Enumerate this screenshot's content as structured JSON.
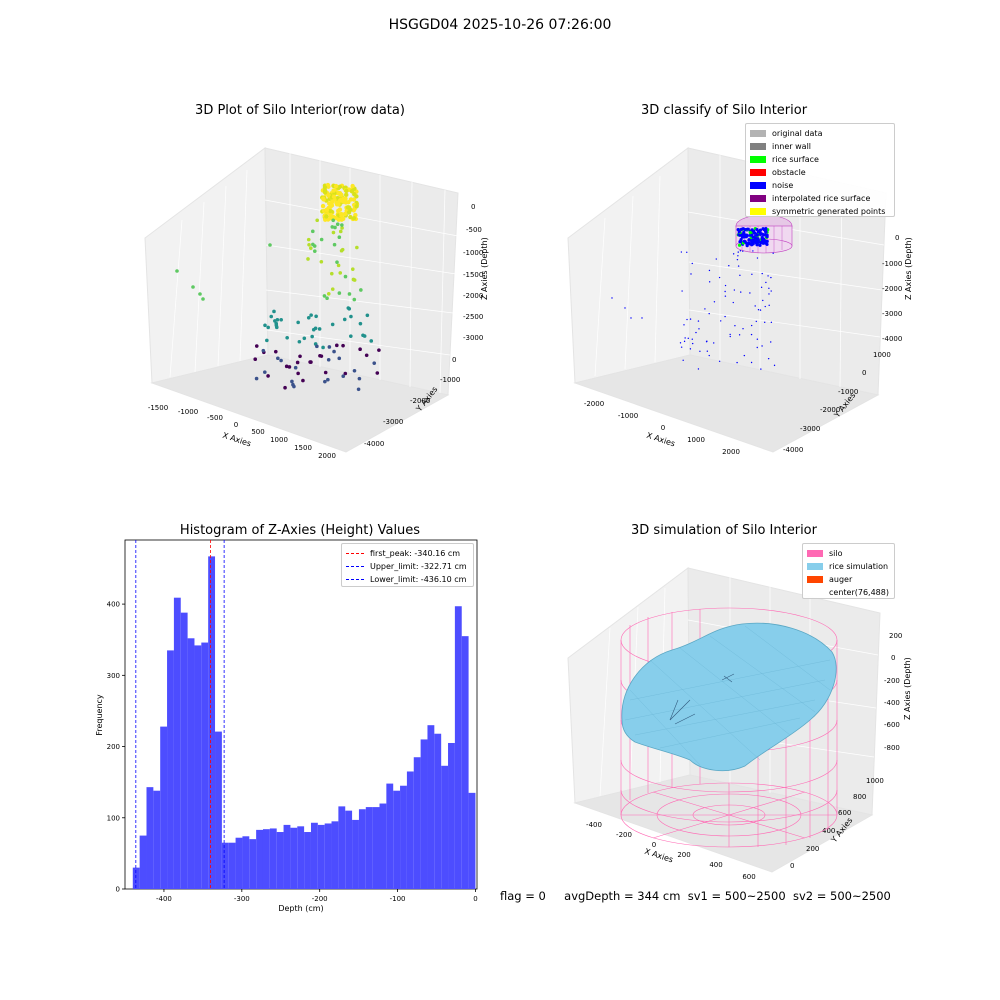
{
  "suptitle": "HSGGD04 2025-10-26 07:26:00",
  "footer": {
    "flag": "flag = 0",
    "avg": "avgDepth = 344 cm",
    "sv1": "sv1 = 500~2500",
    "sv2": "sv2 = 500~2500"
  },
  "chart_data": [
    {
      "type": "scatter",
      "title": "3D Plot of Silo Interior(row data)",
      "xlabel": "X Axies",
      "ylabel": "Y Axies",
      "zlabel": "Z Axies (Depth)",
      "xticks": [
        "-1500",
        "-1000",
        "-500",
        "0",
        "500",
        "1000",
        "1500",
        "2000"
      ],
      "yticks": [
        "0",
        "-1000",
        "-2000",
        "-3000",
        "-4000"
      ],
      "zticks": [
        "0",
        "-500",
        "-1000",
        "-1500",
        "-2000",
        "-2500",
        "-3000"
      ],
      "colormap": [
        "#440154",
        "#3b528b",
        "#21918c",
        "#5ec962",
        "#fde725"
      ]
    },
    {
      "type": "scatter",
      "title": "3D classify of Silo Interior",
      "xlabel": "X Axies",
      "ylabel": "Y Axies",
      "zlabel": "Z Axies (Depth)",
      "xticks": [
        "-2000",
        "-1000",
        "0",
        "1000",
        "2000"
      ],
      "yticks": [
        "1000",
        "0",
        "-1000",
        "-2000",
        "-3000",
        "-4000"
      ],
      "zticks": [
        "0",
        "-1000",
        "-2000",
        "-3000",
        "-4000"
      ],
      "legend": [
        {
          "label": "original data",
          "color": "#b3b3b3"
        },
        {
          "label": "inner wall",
          "color": "#808080"
        },
        {
          "label": "rice surface",
          "color": "#00ff00"
        },
        {
          "label": "obstacle",
          "color": "#ff0000"
        },
        {
          "label": "noise",
          "color": "#0000ff"
        },
        {
          "label": "interpolated rice surface",
          "color": "#800080"
        },
        {
          "label": "symmetric generated points",
          "color": "#ffff00"
        }
      ]
    },
    {
      "type": "bar",
      "title": "Histogram of Z-Axies (Height) Values",
      "xlabel": "Depth (cm)",
      "ylabel": "Frequency",
      "xlim": [
        -450,
        2
      ],
      "ylim": [
        0,
        490
      ],
      "xticks": [
        -400,
        -300,
        -200,
        -100,
        0
      ],
      "yticks": [
        0,
        100,
        200,
        300,
        400
      ],
      "bar_color": "#4d4dff",
      "bins": {
        "start": -440,
        "width": 8.8,
        "values": [
          30,
          75,
          143,
          138,
          228,
          335,
          409,
          388,
          352,
          342,
          346,
          467,
          221,
          65,
          65,
          72,
          74,
          70,
          83,
          84,
          85,
          80,
          90,
          86,
          88,
          80,
          93,
          90,
          92,
          95,
          116,
          110,
          97,
          112,
          115,
          115,
          120,
          148,
          138,
          145,
          165,
          185,
          210,
          230,
          218,
          173,
          205,
          397,
          355,
          135
        ]
      },
      "lines": [
        {
          "label": "first_peak: -340.16 cm",
          "x": -340.16,
          "color": "#ff0000"
        },
        {
          "label": "Upper_limit: -322.71 cm",
          "x": -322.71,
          "color": "#0000ff"
        },
        {
          "label": "Lower_limit: -436.10 cm",
          "x": -436.1,
          "color": "#0000ff"
        }
      ]
    },
    {
      "type": "area",
      "title": "3D simulation of Silo Interior",
      "xlabel": "X Axies",
      "ylabel": "Y Axies",
      "zlabel": "Z Axies (Depth)",
      "xticks": [
        "-400",
        "-200",
        "0",
        "200",
        "400",
        "600"
      ],
      "yticks": [
        "0",
        "200",
        "400",
        "600",
        "800",
        "1000"
      ],
      "zticks": [
        "200",
        "0",
        "-200",
        "-400",
        "-600",
        "-800"
      ],
      "legend": [
        {
          "label": "silo",
          "color": "#ff69b4"
        },
        {
          "label": "rice simulation",
          "color": "#87ceeb"
        },
        {
          "label": "auger",
          "color": "#ff4500"
        },
        {
          "label": "center(76,488)",
          "color": ""
        }
      ]
    }
  ]
}
